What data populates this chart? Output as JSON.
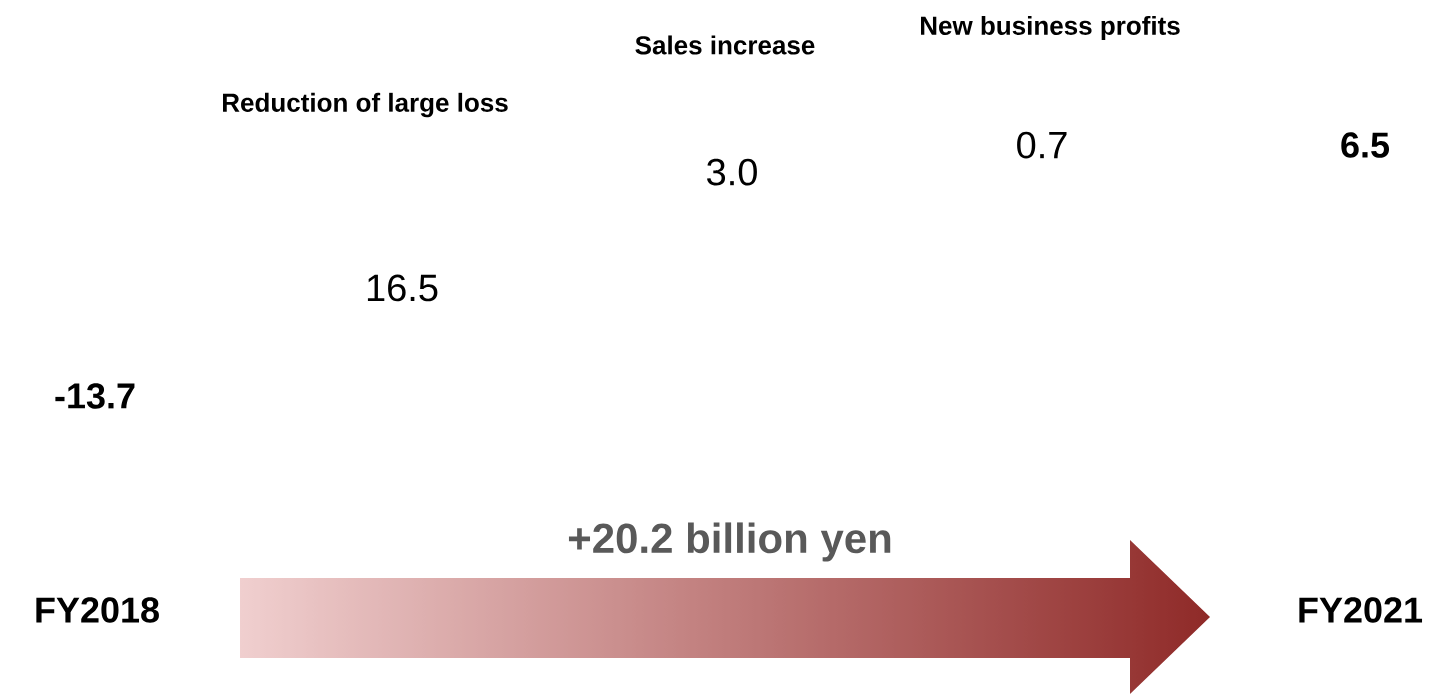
{
  "chart_data": {
    "type": "other",
    "categories": [
      "FY2018",
      "Reduction of large loss",
      "Sales increase",
      "New business profits",
      "FY2021"
    ],
    "values": [
      -13.7,
      16.5,
      3.0,
      0.7,
      6.5
    ],
    "value_labels": [
      "-13.7",
      "16.5",
      "3.0",
      "0.7",
      "6.5"
    ],
    "annotations": [
      "+20.2 billion yen"
    ]
  }
}
